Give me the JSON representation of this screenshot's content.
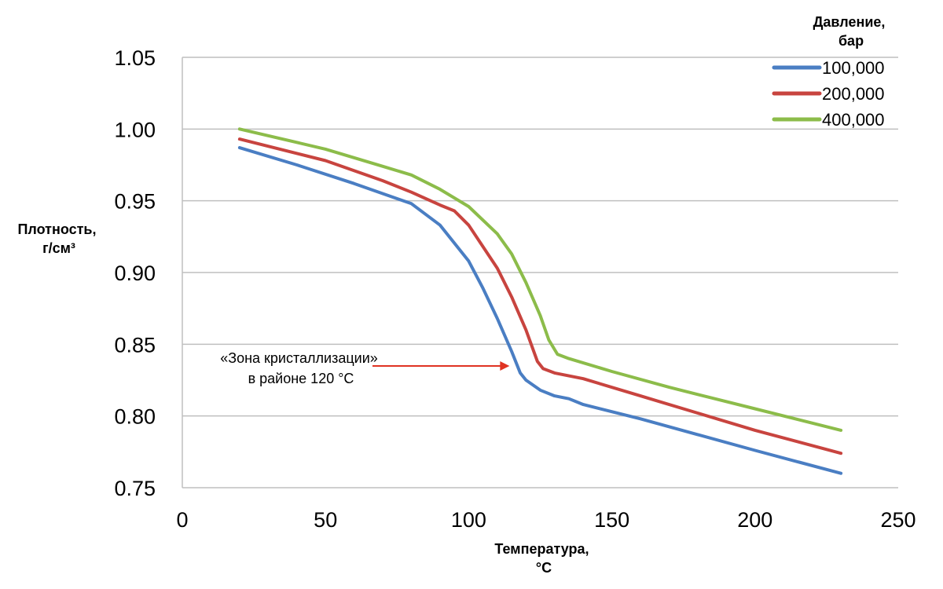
{
  "chart_data": {
    "type": "line",
    "title": "",
    "xlabel": [
      "Температура,",
      "°C"
    ],
    "ylabel": [
      "Плотность,",
      "г/см³"
    ],
    "xlim": [
      0,
      250
    ],
    "ylim": [
      0.75,
      1.05
    ],
    "xticks": [
      0,
      50,
      100,
      150,
      200,
      250
    ],
    "yticks": [
      0.75,
      0.8,
      0.85,
      0.9,
      0.95,
      1.0,
      1.05
    ],
    "ytick_labels": [
      "0.75",
      "0.80",
      "0.85",
      "0.90",
      "0.95",
      "1.00",
      "1.05"
    ],
    "grid": "horizontal",
    "legend": {
      "title": [
        "Давление,",
        "бар"
      ],
      "placement": "top-right"
    },
    "series": [
      {
        "name": "100,000",
        "color": "#4a7ec3",
        "x": [
          20,
          40,
          60,
          80,
          90,
          100,
          105,
          110,
          115,
          118,
          120,
          125,
          130,
          135,
          140,
          160,
          180,
          200,
          230
        ],
        "y": [
          0.987,
          0.975,
          0.962,
          0.948,
          0.933,
          0.908,
          0.889,
          0.868,
          0.845,
          0.83,
          0.825,
          0.818,
          0.814,
          0.812,
          0.808,
          0.798,
          0.787,
          0.776,
          0.76
        ]
      },
      {
        "name": "200,000",
        "color": "#c8443f",
        "x": [
          20,
          50,
          70,
          80,
          90,
          95,
          100,
          110,
          115,
          120,
          124,
          126,
          130,
          140,
          160,
          180,
          200,
          230
        ],
        "y": [
          0.993,
          0.978,
          0.964,
          0.956,
          0.947,
          0.943,
          0.933,
          0.903,
          0.883,
          0.86,
          0.838,
          0.833,
          0.83,
          0.826,
          0.814,
          0.802,
          0.79,
          0.774
        ]
      },
      {
        "name": "400,000",
        "color": "#8cbc4a",
        "x": [
          20,
          50,
          70,
          80,
          90,
          100,
          110,
          115,
          120,
          125,
          128,
          131,
          135,
          150,
          170,
          200,
          230
        ],
        "y": [
          1.0,
          0.986,
          0.974,
          0.968,
          0.958,
          0.946,
          0.927,
          0.913,
          0.893,
          0.87,
          0.853,
          0.843,
          0.84,
          0.831,
          0.82,
          0.805,
          0.79
        ]
      }
    ],
    "annotations": [
      {
        "text": [
          "«Зона кристаллизации»",
          "в районе 120 °C"
        ],
        "arrow_color": "#e03322",
        "arrow_to": [
          117,
          0.834
        ]
      }
    ]
  }
}
